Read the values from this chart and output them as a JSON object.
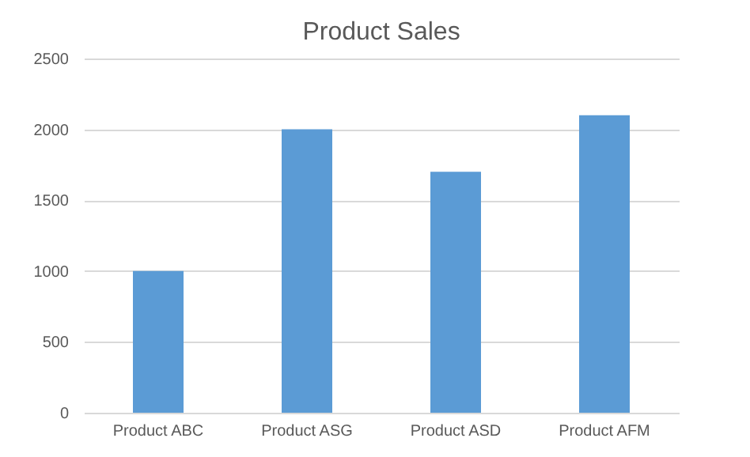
{
  "chart_data": {
    "type": "bar",
    "title": "Product Sales",
    "categories": [
      "Product ABC",
      "Product ASG",
      "Product ASD",
      "Product AFM"
    ],
    "values": [
      1000,
      2000,
      1700,
      2100
    ],
    "color": "#5b9bd5",
    "ylim": [
      0,
      2500
    ],
    "yticks": [
      0,
      500,
      1000,
      1500,
      2000,
      2500
    ],
    "grid": "y"
  }
}
